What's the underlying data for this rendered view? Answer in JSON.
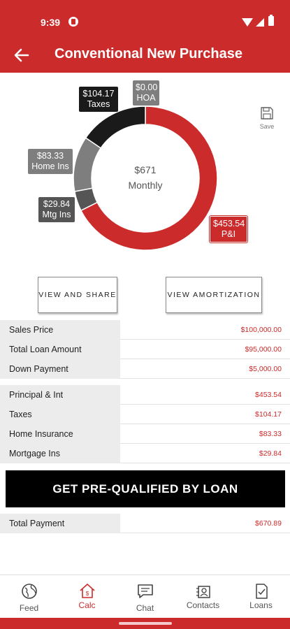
{
  "status_bar": {
    "time": "9:39"
  },
  "header": {
    "title": "Conventional New Purchase"
  },
  "chart_data": {
    "type": "pie",
    "center": {
      "amount": "$671",
      "label": "Monthly"
    },
    "slices": [
      {
        "name": "P&I",
        "value": 453.54,
        "label": "$453.54",
        "color": "#cc2b2b"
      },
      {
        "name": "Mtg Ins",
        "value": 29.84,
        "label": "$29.84",
        "color": "#555555"
      },
      {
        "name": "Home Ins",
        "value": 83.33,
        "label": "$83.33",
        "color": "#7e7e7e"
      },
      {
        "name": "Taxes",
        "value": 104.17,
        "label": "$104.17",
        "color": "#1a1a1a"
      },
      {
        "name": "HOA",
        "value": 0.0,
        "label": "$0.00",
        "color": "#7e7e7e"
      }
    ]
  },
  "save": {
    "label": "Save"
  },
  "buttons": {
    "view_share": "VIEW AND SHARE",
    "view_amortization": "VIEW AMORTIZATION",
    "prequal": "GET PRE-QUALIFIED BY LOAN"
  },
  "loan_table": [
    {
      "label": "Sales Price",
      "value": "$100,000.00"
    },
    {
      "label": "Total Loan Amount",
      "value": "$95,000.00"
    },
    {
      "label": "Down Payment",
      "value": "$5,000.00"
    }
  ],
  "payment_table": [
    {
      "label": "Principal & Int",
      "value": "$453.54"
    },
    {
      "label": "Taxes",
      "value": "$104.17"
    },
    {
      "label": "Home Insurance",
      "value": "$83.33"
    },
    {
      "label": "Mortgage Ins",
      "value": "$29.84"
    }
  ],
  "total": {
    "label": "Total Payment",
    "value": "$670.89"
  },
  "nav": [
    {
      "label": "Feed",
      "icon": "feed-globe-icon",
      "active": false
    },
    {
      "label": "Calc",
      "icon": "calc-house-icon",
      "active": true
    },
    {
      "label": "Chat",
      "icon": "chat-icon",
      "active": false
    },
    {
      "label": "Contacts",
      "icon": "contacts-icon",
      "active": false
    },
    {
      "label": "Loans",
      "icon": "loans-document-icon",
      "active": false
    }
  ],
  "colors": {
    "brand": "#cc2b2b",
    "dark": "#1a1a1a"
  }
}
